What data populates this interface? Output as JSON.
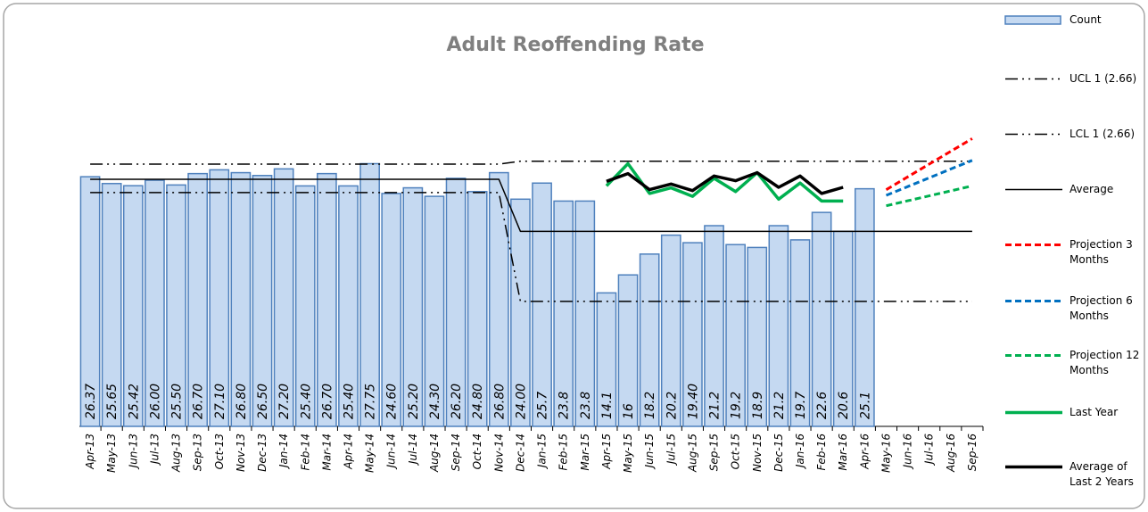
{
  "chart_data": {
    "type": "bar",
    "title": "Adult Reoffending Rate",
    "categories": [
      "Apr-13",
      "May-13",
      "Jun-13",
      "Jul-13",
      "Aug-13",
      "Sep-13",
      "Oct-13",
      "Nov-13",
      "Dec-13",
      "Jan-14",
      "Feb-14",
      "Mar-14",
      "Apr-14",
      "May-14",
      "Jun-14",
      "Jul-14",
      "Aug-14",
      "Sep-14",
      "Oct-14",
      "Nov-14",
      "Dec-14",
      "Jan-15",
      "Feb-15",
      "Mar-15",
      "Apr-15",
      "May-15",
      "Jun-15",
      "Jul-15",
      "Aug-15",
      "Sep-15",
      "Oct-15",
      "Nov-15",
      "Dec-15",
      "Jan-16",
      "Feb-16",
      "Mar-16",
      "Apr-16",
      "May-16",
      "Jun-16",
      "Jul-16",
      "Aug-16",
      "Sep-16"
    ],
    "ylim": [
      0,
      31
    ],
    "series": [
      {
        "name": "Count",
        "type": "bar",
        "color": "#c5d9f1",
        "edge": "#4f81bd",
        "values": [
          26.37,
          25.65,
          25.42,
          26.0,
          25.5,
          26.7,
          27.1,
          26.8,
          26.5,
          27.2,
          25.4,
          26.7,
          25.4,
          27.75,
          24.6,
          25.2,
          24.3,
          26.2,
          24.8,
          26.8,
          24.0,
          25.7,
          23.8,
          23.8,
          14.1,
          16,
          18.2,
          20.2,
          19.4,
          21.2,
          19.2,
          18.9,
          21.2,
          19.7,
          22.6,
          20.6,
          25.1,
          null,
          null,
          null,
          null,
          null
        ],
        "value_labels": [
          "26.37",
          "25.65",
          "25.42",
          "26.00",
          "25.50",
          "26.70",
          "27.10",
          "26.80",
          "26.50",
          "27.20",
          "25.40",
          "26.70",
          "25.40",
          "27.75",
          "24.60",
          "25.20",
          "24.30",
          "26.20",
          "24.80",
          "26.80",
          "24.00",
          "25.7",
          "23.8",
          "23.8",
          "14.1",
          "16",
          "18.2",
          "20.2",
          "19.40",
          "21.2",
          "19.2",
          "18.9",
          "21.2",
          "19.7",
          "22.6",
          "20.6",
          "25.1",
          null,
          null,
          null,
          null,
          null
        ]
      },
      {
        "name": "UCL 1 (2.66)",
        "type": "line",
        "color": "#000000",
        "style": "dash-dot",
        "width": 1.5,
        "values": [
          27.7,
          27.7,
          27.7,
          27.7,
          27.7,
          27.7,
          27.7,
          27.7,
          27.7,
          27.7,
          27.7,
          27.7,
          27.7,
          27.7,
          27.7,
          27.7,
          27.7,
          27.7,
          27.7,
          27.7,
          28.0,
          28.0,
          28.0,
          28.0,
          28.0,
          28.0,
          28.0,
          28.0,
          28.0,
          28.0,
          28.0,
          28.0,
          28.0,
          28.0,
          28.0,
          28.0,
          28.0,
          28.0,
          28.0,
          28.0,
          28.0,
          28.0
        ]
      },
      {
        "name": "LCL 1 (2.66)",
        "type": "line",
        "color": "#000000",
        "style": "dash-dot",
        "width": 1.5,
        "values": [
          24.7,
          24.7,
          24.7,
          24.7,
          24.7,
          24.7,
          24.7,
          24.7,
          24.7,
          24.7,
          24.7,
          24.7,
          24.7,
          24.7,
          24.7,
          24.7,
          24.7,
          24.7,
          24.7,
          24.7,
          13.2,
          13.2,
          13.2,
          13.2,
          13.2,
          13.2,
          13.2,
          13.2,
          13.2,
          13.2,
          13.2,
          13.2,
          13.2,
          13.2,
          13.2,
          13.2,
          13.2,
          13.2,
          13.2,
          13.2,
          13.2,
          13.2
        ]
      },
      {
        "name": "Average",
        "type": "line",
        "color": "#000000",
        "style": "solid",
        "width": 1.5,
        "values": [
          26.1,
          26.1,
          26.1,
          26.1,
          26.1,
          26.1,
          26.1,
          26.1,
          26.1,
          26.1,
          26.1,
          26.1,
          26.1,
          26.1,
          26.1,
          26.1,
          26.1,
          26.1,
          26.1,
          26.1,
          20.6,
          20.6,
          20.6,
          20.6,
          20.6,
          20.6,
          20.6,
          20.6,
          20.6,
          20.6,
          20.6,
          20.6,
          20.6,
          20.6,
          20.6,
          20.6,
          20.6,
          20.6,
          20.6,
          20.6,
          20.6,
          20.6
        ]
      },
      {
        "name": "Projection 3 Months",
        "type": "line",
        "color": "#ff0000",
        "style": "dashed",
        "width": 3,
        "values": [
          null,
          null,
          null,
          null,
          null,
          null,
          null,
          null,
          null,
          null,
          null,
          null,
          null,
          null,
          null,
          null,
          null,
          null,
          null,
          null,
          null,
          null,
          null,
          null,
          null,
          null,
          null,
          null,
          null,
          null,
          null,
          null,
          null,
          null,
          null,
          null,
          null,
          25.0,
          26.35,
          27.7,
          29.05,
          30.4
        ]
      },
      {
        "name": "Projection 6 Months",
        "type": "line",
        "color": "#0070c0",
        "style": "dashed",
        "width": 3,
        "values": [
          null,
          null,
          null,
          null,
          null,
          null,
          null,
          null,
          null,
          null,
          null,
          null,
          null,
          null,
          null,
          null,
          null,
          null,
          null,
          null,
          null,
          null,
          null,
          null,
          null,
          null,
          null,
          null,
          null,
          null,
          null,
          null,
          null,
          null,
          null,
          null,
          null,
          24.4,
          25.33,
          26.25,
          27.18,
          28.1
        ]
      },
      {
        "name": "Projection 12 Months",
        "type": "line",
        "color": "#00b050",
        "style": "dashed",
        "width": 3,
        "values": [
          null,
          null,
          null,
          null,
          null,
          null,
          null,
          null,
          null,
          null,
          null,
          null,
          null,
          null,
          null,
          null,
          null,
          null,
          null,
          null,
          null,
          null,
          null,
          null,
          null,
          null,
          null,
          null,
          null,
          null,
          null,
          null,
          null,
          null,
          null,
          null,
          null,
          23.3,
          23.83,
          24.35,
          24.88,
          25.4
        ]
      },
      {
        "name": "Last Year",
        "type": "line",
        "color": "#00b050",
        "style": "solid",
        "width": 3.5,
        "values": [
          null,
          null,
          null,
          null,
          null,
          null,
          null,
          null,
          null,
          null,
          null,
          null,
          null,
          null,
          null,
          null,
          null,
          null,
          null,
          null,
          null,
          null,
          null,
          null,
          25.4,
          27.75,
          24.6,
          25.2,
          24.3,
          26.2,
          24.8,
          26.8,
          24.0,
          25.7,
          23.8,
          23.8,
          null,
          null,
          null,
          null,
          null,
          null
        ]
      },
      {
        "name": "Average of Last 2 Years",
        "type": "line",
        "color": "#000000",
        "style": "solid",
        "width": 3.5,
        "values": [
          null,
          null,
          null,
          null,
          null,
          null,
          null,
          null,
          null,
          null,
          null,
          null,
          null,
          null,
          null,
          null,
          null,
          null,
          null,
          null,
          null,
          null,
          null,
          null,
          25.885,
          26.7,
          25.01,
          25.6,
          24.9,
          26.45,
          25.95,
          26.8,
          25.25,
          26.45,
          24.6,
          25.25,
          null,
          null,
          null,
          null,
          null,
          null
        ]
      }
    ]
  }
}
